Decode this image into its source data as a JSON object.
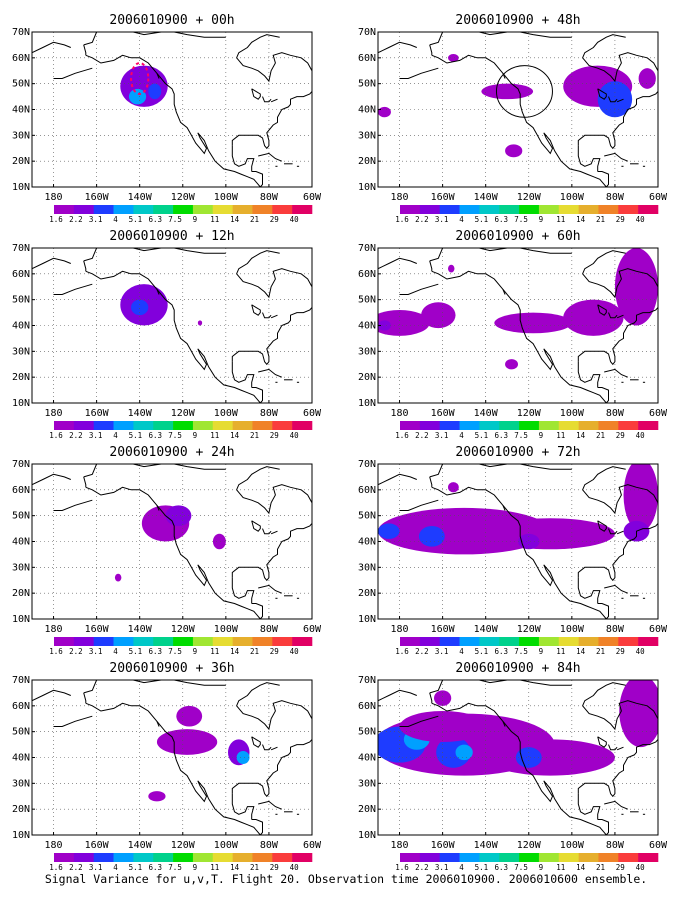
{
  "caption": "Signal Variance for u,v,T. Flight 20. Observation time 2006010900. 2006010600 ensemble.",
  "colorbar": {
    "labels": [
      "1.6",
      "2.2",
      "3.1",
      "4",
      "5.1",
      "6.3",
      "7.5",
      "9",
      "11",
      "14",
      "21",
      "29",
      "40"
    ],
    "colors": [
      "#a000c8",
      "#8200dc",
      "#1e3cff",
      "#00a0ff",
      "#00c8c8",
      "#00d28c",
      "#00dc00",
      "#a0e632",
      "#e6dc32",
      "#e6af2d",
      "#f08228",
      "#fa3c3c",
      "#e10064"
    ]
  },
  "map": {
    "xticks": [
      "180",
      "160W",
      "140W",
      "120W",
      "100W",
      "80W",
      "60W"
    ],
    "yticks": [
      "10N",
      "20N",
      "30N",
      "40N",
      "50N",
      "60N",
      "70N"
    ]
  },
  "chart_data": [
    {
      "type": "heatmap",
      "title": "2006010900 + 00h",
      "lon_range": [
        -190,
        -60
      ],
      "lat_range": [
        10,
        70
      ],
      "blobs": [
        {
          "lon": -138,
          "lat": 49,
          "rlon": 11,
          "rlat": 8,
          "value": 3
        },
        {
          "lon": -141,
          "lat": 45,
          "rlon": 4,
          "rlat": 3,
          "value": 4.5
        },
        {
          "lon": -133,
          "lat": 47,
          "rlon": 3,
          "rlat": 3,
          "value": 3.5
        }
      ],
      "markers": [
        {
          "lon": -140,
          "lat": 52,
          "rlon": 4,
          "rlat": 6,
          "color": "#ff0064"
        }
      ]
    },
    {
      "type": "heatmap",
      "title": "2006010900 + 48h",
      "lon_range": [
        -190,
        -60
      ],
      "lat_range": [
        10,
        70
      ],
      "blobs": [
        {
          "lon": -88,
          "lat": 49,
          "rlon": 16,
          "rlat": 8,
          "value": 2
        },
        {
          "lon": -80,
          "lat": 44,
          "rlon": 8,
          "rlat": 7,
          "value": 3.2
        },
        {
          "lon": -130,
          "lat": 47,
          "rlon": 12,
          "rlat": 3,
          "value": 2
        },
        {
          "lon": -127,
          "lat": 24,
          "rlon": 4,
          "rlat": 2.5,
          "value": 2
        },
        {
          "lon": -187,
          "lat": 39,
          "rlon": 3,
          "rlat": 2,
          "value": 2
        },
        {
          "lon": -155,
          "lat": 60,
          "rlon": 2.5,
          "rlat": 1.5,
          "value": 2
        },
        {
          "lon": -65,
          "lat": 52,
          "rlon": 4,
          "rlat": 4,
          "value": 2
        }
      ],
      "circles": [
        {
          "lon": -122,
          "lat": 47,
          "rlon": 13,
          "rlat": 10
        }
      ]
    },
    {
      "type": "heatmap",
      "title": "2006010900 + 12h",
      "lon_range": [
        -190,
        -60
      ],
      "lat_range": [
        10,
        70
      ],
      "blobs": [
        {
          "lon": -138,
          "lat": 48,
          "rlon": 11,
          "rlat": 8,
          "value": 2.5
        },
        {
          "lon": -140,
          "lat": 47,
          "rlon": 4,
          "rlat": 3,
          "value": 3.5
        },
        {
          "lon": -112,
          "lat": 41,
          "rlon": 1,
          "rlat": 1,
          "value": 2
        }
      ],
      "circles": []
    },
    {
      "type": "heatmap",
      "title": "2006010900 + 60h",
      "lon_range": [
        -190,
        -60
      ],
      "lat_range": [
        10,
        70
      ],
      "blobs": [
        {
          "lon": -180,
          "lat": 41,
          "rlon": 14,
          "rlat": 5,
          "value": 2
        },
        {
          "lon": -162,
          "lat": 44,
          "rlon": 8,
          "rlat": 5,
          "value": 2
        },
        {
          "lon": -187,
          "lat": 40,
          "rlon": 3,
          "rlat": 2,
          "value": 3
        },
        {
          "lon": -118,
          "lat": 41,
          "rlon": 18,
          "rlat": 4,
          "value": 2
        },
        {
          "lon": -90,
          "lat": 43,
          "rlon": 14,
          "rlat": 7,
          "value": 2
        },
        {
          "lon": -70,
          "lat": 55,
          "rlon": 10,
          "rlat": 15,
          "value": 2
        },
        {
          "lon": -128,
          "lat": 25,
          "rlon": 3,
          "rlat": 2,
          "value": 2
        },
        {
          "lon": -156,
          "lat": 62,
          "rlon": 1.5,
          "rlat": 1.5,
          "value": 2
        }
      ],
      "circles": []
    },
    {
      "type": "heatmap",
      "title": "2006010900 + 24h",
      "lon_range": [
        -190,
        -60
      ],
      "lat_range": [
        10,
        70
      ],
      "blobs": [
        {
          "lon": -128,
          "lat": 47,
          "rlon": 11,
          "rlat": 7,
          "value": 2
        },
        {
          "lon": -122,
          "lat": 50,
          "rlon": 6,
          "rlat": 4,
          "value": 3
        },
        {
          "lon": -103,
          "lat": 40,
          "rlon": 3,
          "rlat": 3,
          "value": 2
        },
        {
          "lon": -150,
          "lat": 26,
          "rlon": 1.5,
          "rlat": 1.5,
          "value": 2
        }
      ],
      "circles": []
    },
    {
      "type": "heatmap",
      "title": "2006010900 + 72h",
      "lon_range": [
        -190,
        -60
      ],
      "lat_range": [
        10,
        70
      ],
      "blobs": [
        {
          "lon": -150,
          "lat": 44,
          "rlon": 40,
          "rlat": 9,
          "value": 2
        },
        {
          "lon": -110,
          "lat": 43,
          "rlon": 30,
          "rlat": 6,
          "value": 2
        },
        {
          "lon": -185,
          "lat": 44,
          "rlon": 5,
          "rlat": 3,
          "value": 3.5
        },
        {
          "lon": -165,
          "lat": 42,
          "rlon": 6,
          "rlat": 4,
          "value": 3.5
        },
        {
          "lon": -120,
          "lat": 40,
          "rlon": 5,
          "rlat": 3,
          "value": 3
        },
        {
          "lon": -68,
          "lat": 58,
          "rlon": 8,
          "rlat": 14,
          "value": 2
        },
        {
          "lon": -70,
          "lat": 44,
          "rlon": 6,
          "rlat": 4,
          "value": 3
        },
        {
          "lon": -155,
          "lat": 61,
          "rlon": 2.5,
          "rlat": 2,
          "value": 2
        }
      ],
      "circles": []
    },
    {
      "type": "heatmap",
      "title": "2006010900 + 36h",
      "lon_range": [
        -190,
        -60
      ],
      "lat_range": [
        10,
        70
      ],
      "blobs": [
        {
          "lon": -118,
          "lat": 46,
          "rlon": 14,
          "rlat": 5,
          "value": 2
        },
        {
          "lon": -117,
          "lat": 56,
          "rlon": 6,
          "rlat": 4,
          "value": 2
        },
        {
          "lon": -94,
          "lat": 42,
          "rlon": 5,
          "rlat": 5,
          "value": 2.5
        },
        {
          "lon": -92,
          "lat": 40,
          "rlon": 3,
          "rlat": 2.5,
          "value": 4
        },
        {
          "lon": -132,
          "lat": 25,
          "rlon": 4,
          "rlat": 2,
          "value": 2
        }
      ],
      "circles": []
    },
    {
      "type": "heatmap",
      "title": "2006010900 + 84h",
      "lon_range": [
        -190,
        -60
      ],
      "lat_range": [
        10,
        70
      ],
      "blobs": [
        {
          "lon": -150,
          "lat": 45,
          "rlon": 42,
          "rlat": 12,
          "value": 2
        },
        {
          "lon": -110,
          "lat": 40,
          "rlon": 30,
          "rlat": 7,
          "value": 2
        },
        {
          "lon": -180,
          "lat": 45,
          "rlon": 12,
          "rlat": 7,
          "value": 3.5
        },
        {
          "lon": -155,
          "lat": 42,
          "rlon": 8,
          "rlat": 6,
          "value": 3.5
        },
        {
          "lon": -172,
          "lat": 47,
          "rlon": 6,
          "rlat": 4,
          "value": 4.5
        },
        {
          "lon": -150,
          "lat": 42,
          "rlon": 4,
          "rlat": 3,
          "value": 4.5
        },
        {
          "lon": -120,
          "lat": 40,
          "rlon": 6,
          "rlat": 4,
          "value": 3.5
        },
        {
          "lon": -68,
          "lat": 58,
          "rlon": 10,
          "rlat": 14,
          "value": 2
        },
        {
          "lon": -160,
          "lat": 63,
          "rlon": 4,
          "rlat": 3,
          "value": 2
        },
        {
          "lon": -160,
          "lat": 52,
          "rlon": 20,
          "rlat": 6,
          "value": 2
        }
      ],
      "circles": []
    }
  ]
}
